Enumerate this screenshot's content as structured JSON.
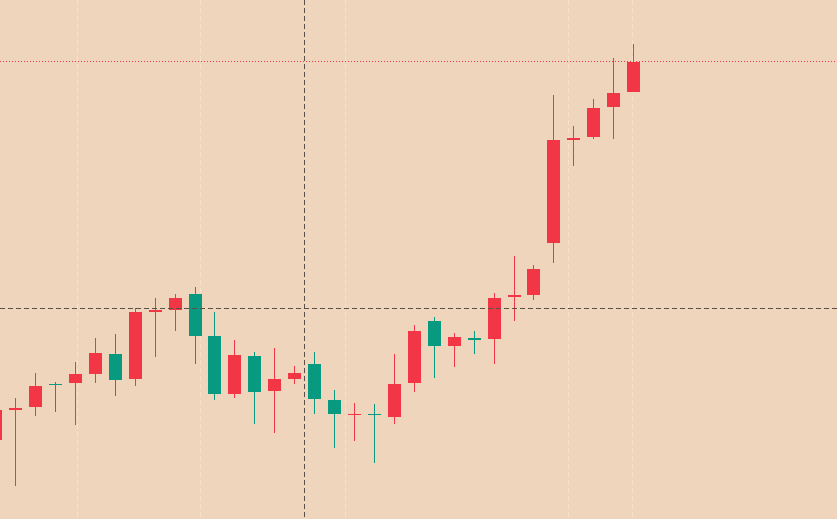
{
  "chart_data": {
    "type": "candlestick",
    "open": [
      79,
      109,
      112,
      135,
      136,
      145,
      165,
      140,
      207,
      209,
      225,
      183,
      125,
      163,
      128,
      140,
      155,
      119,
      104,
      105,
      102,
      136,
      198,
      173,
      181,
      180,
      222,
      224,
      276,
      379,
      382,
      412,
      427
    ],
    "high": [
      114,
      121,
      146,
      137,
      157,
      181,
      185,
      211,
      221,
      225,
      232,
      207,
      179,
      167,
      171,
      153,
      167,
      129,
      116,
      115,
      165,
      194,
      202,
      186,
      188,
      226,
      263,
      254,
      424,
      393,
      420,
      461,
      475
    ],
    "low": [
      74,
      33,
      103,
      107,
      94,
      136,
      123,
      133,
      162,
      188,
      155,
      119,
      121,
      95,
      86,
      135,
      105,
      71,
      78,
      56,
      95,
      127,
      141,
      152,
      165,
      155,
      198,
      219,
      256,
      353,
      380,
      380,
      427
    ],
    "close": [
      109,
      111,
      133,
      134,
      145,
      166,
      139,
      207,
      209,
      221,
      183,
      125,
      164,
      127,
      140,
      146,
      120,
      105,
      105,
      104,
      135,
      188,
      173,
      182,
      179,
      221,
      224,
      250,
      379,
      381,
      411,
      426,
      457
    ],
    "up_color": "#f23645",
    "down_color": "#089981",
    "ylim": [
      0,
      519
    ],
    "last_price_line": true
  }
}
